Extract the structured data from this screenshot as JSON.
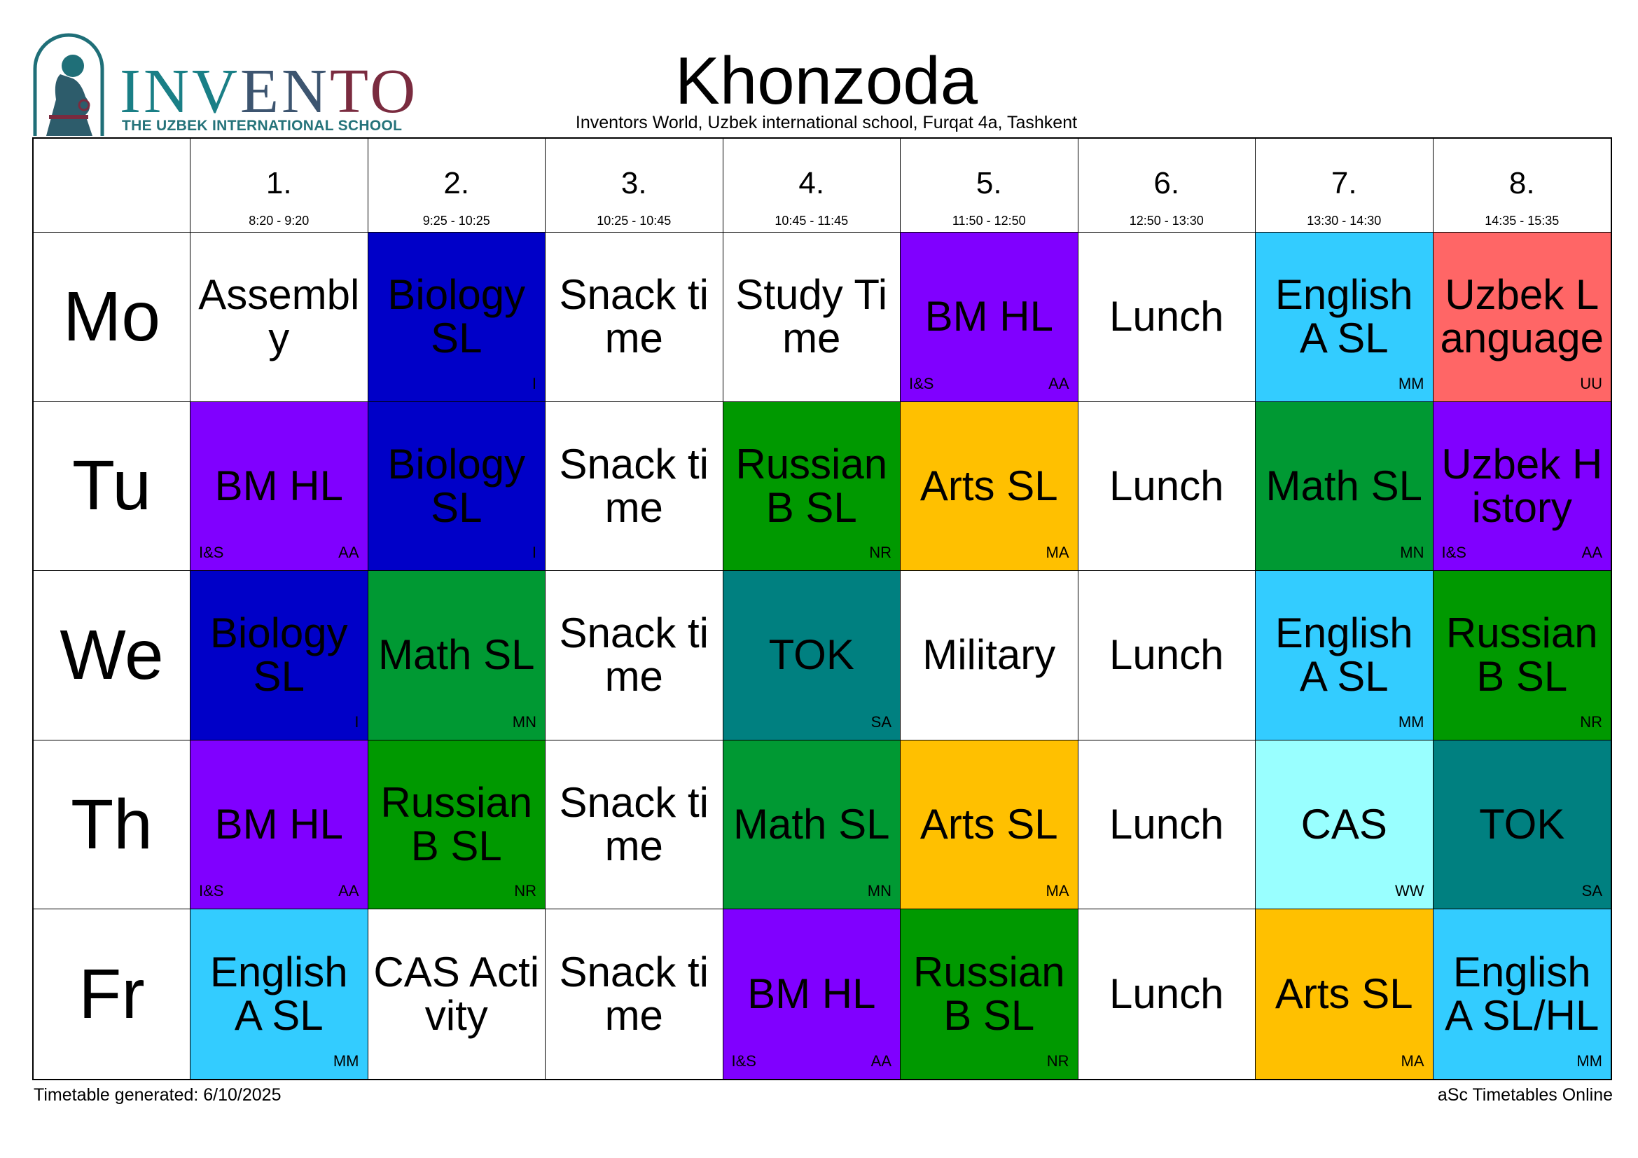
{
  "header": {
    "brand": "INVENTO",
    "tagline": "THE UZBEK INTERNATIONAL SCHOOL",
    "title": "Khonzoda",
    "subtitle": "Inventors World, Uzbek international school, Furqat 4a, Tashkent"
  },
  "periods": [
    {
      "num": "1.",
      "time": "8:20 - 9:20"
    },
    {
      "num": "2.",
      "time": "9:25 - 10:25"
    },
    {
      "num": "3.",
      "time": "10:25 - 10:45"
    },
    {
      "num": "4.",
      "time": "10:45 - 11:45"
    },
    {
      "num": "5.",
      "time": "11:50 - 12:50"
    },
    {
      "num": "6.",
      "time": "12:50 - 13:30"
    },
    {
      "num": "7.",
      "time": "13:30 - 14:30"
    },
    {
      "num": "8.",
      "time": "14:35 - 15:35"
    }
  ],
  "days": [
    {
      "label": "Mo",
      "lessons": [
        {
          "subject": "Assembly",
          "group": "",
          "teacher": "",
          "color": "#ffffff"
        },
        {
          "subject": "Biology SL",
          "group": "",
          "teacher": "I",
          "color": "#0000c8"
        },
        {
          "subject": "Snack time",
          "group": "",
          "teacher": "",
          "color": "#ffffff"
        },
        {
          "subject": "Study Time",
          "group": "",
          "teacher": "",
          "color": "#ffffff"
        },
        {
          "subject": "BM HL",
          "group": "I&S",
          "teacher": "AA",
          "color": "#8000ff"
        },
        {
          "subject": "Lunch",
          "group": "",
          "teacher": "",
          "color": "#ffffff"
        },
        {
          "subject": "English A SL",
          "group": "",
          "teacher": "MM",
          "color": "#33ccff"
        },
        {
          "subject": "Uzbek Language",
          "group": "",
          "teacher": "UU",
          "color": "#ff6666"
        }
      ]
    },
    {
      "label": "Tu",
      "lessons": [
        {
          "subject": "BM HL",
          "group": "I&S",
          "teacher": "AA",
          "color": "#8000ff"
        },
        {
          "subject": "Biology SL",
          "group": "",
          "teacher": "I",
          "color": "#0000c8"
        },
        {
          "subject": "Snack time",
          "group": "",
          "teacher": "",
          "color": "#ffffff"
        },
        {
          "subject": "Russian B SL",
          "group": "",
          "teacher": "NR",
          "color": "#009900"
        },
        {
          "subject": "Arts SL",
          "group": "",
          "teacher": "MA",
          "color": "#ffc000"
        },
        {
          "subject": "Lunch",
          "group": "",
          "teacher": "",
          "color": "#ffffff"
        },
        {
          "subject": "Math SL",
          "group": "",
          "teacher": "MN",
          "color": "#009933"
        },
        {
          "subject": "Uzbek History",
          "group": "I&S",
          "teacher": "AA",
          "color": "#8000ff"
        }
      ]
    },
    {
      "label": "We",
      "lessons": [
        {
          "subject": "Biology SL",
          "group": "",
          "teacher": "I",
          "color": "#0000c8"
        },
        {
          "subject": "Math SL",
          "group": "",
          "teacher": "MN",
          "color": "#009933"
        },
        {
          "subject": "Snack time",
          "group": "",
          "teacher": "",
          "color": "#ffffff"
        },
        {
          "subject": "TOK",
          "group": "",
          "teacher": "SA",
          "color": "#008080"
        },
        {
          "subject": "Military",
          "group": "",
          "teacher": "",
          "color": "#ffffff"
        },
        {
          "subject": "Lunch",
          "group": "",
          "teacher": "",
          "color": "#ffffff"
        },
        {
          "subject": "English A SL",
          "group": "",
          "teacher": "MM",
          "color": "#33ccff"
        },
        {
          "subject": "Russian B SL",
          "group": "",
          "teacher": "NR",
          "color": "#009900"
        }
      ]
    },
    {
      "label": "Th",
      "lessons": [
        {
          "subject": "BM HL",
          "group": "I&S",
          "teacher": "AA",
          "color": "#8000ff"
        },
        {
          "subject": "Russian B SL",
          "group": "",
          "teacher": "NR",
          "color": "#009900"
        },
        {
          "subject": "Snack time",
          "group": "",
          "teacher": "",
          "color": "#ffffff"
        },
        {
          "subject": "Math SL",
          "group": "",
          "teacher": "MN",
          "color": "#009933"
        },
        {
          "subject": "Arts SL",
          "group": "",
          "teacher": "MA",
          "color": "#ffc000"
        },
        {
          "subject": "Lunch",
          "group": "",
          "teacher": "",
          "color": "#ffffff"
        },
        {
          "subject": "CAS",
          "group": "",
          "teacher": "WW",
          "color": "#99ffff"
        },
        {
          "subject": "TOK",
          "group": "",
          "teacher": "SA",
          "color": "#008080"
        }
      ]
    },
    {
      "label": "Fr",
      "lessons": [
        {
          "subject": "English A SL",
          "group": "",
          "teacher": "MM",
          "color": "#33ccff"
        },
        {
          "subject": "CAS Activity",
          "group": "",
          "teacher": "",
          "color": "#ffffff"
        },
        {
          "subject": "Snack time",
          "group": "",
          "teacher": "",
          "color": "#ffffff"
        },
        {
          "subject": "BM HL",
          "group": "I&S",
          "teacher": "AA",
          "color": "#8000ff"
        },
        {
          "subject": "Russian B SL",
          "group": "",
          "teacher": "NR",
          "color": "#009900"
        },
        {
          "subject": "Lunch",
          "group": "",
          "teacher": "",
          "color": "#ffffff"
        },
        {
          "subject": "Arts SL",
          "group": "",
          "teacher": "MA",
          "color": "#ffc000"
        },
        {
          "subject": "English A SL/HL",
          "group": "",
          "teacher": "MM",
          "color": "#33ccff"
        }
      ]
    }
  ],
  "footer": {
    "generated": "Timetable generated: 6/10/2025",
    "software": "aSc Timetables Online"
  }
}
